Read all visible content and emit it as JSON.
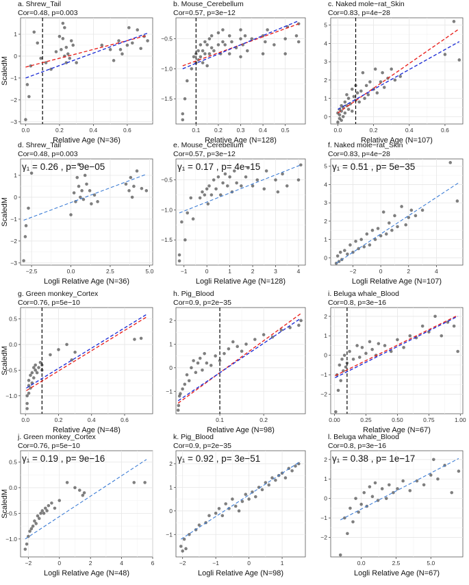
{
  "figure": {
    "ylabel": "ScaledM"
  },
  "chart_data": [
    {
      "type": "scatter",
      "title": "a. Shrew_Tail",
      "subtitle": "Cor=0.48, p=0.003",
      "xlabel": "Relative Age (N=36)",
      "ylabel": "ScaledM",
      "xlim": [
        -0.03,
        0.75
      ],
      "ylim": [
        -3.1,
        1.75
      ],
      "xticks": [
        0.0,
        0.2,
        0.4,
        0.6
      ],
      "yticks": [
        -3,
        -2,
        -1,
        0,
        1
      ],
      "vline": 0.1,
      "red_fit": [
        [
          0,
          -0.5
        ],
        [
          0.72,
          0.95
        ]
      ],
      "blue_fit": [
        [
          0,
          -1.0
        ],
        [
          0.72,
          1.05
        ]
      ],
      "x": [
        0.0,
        0.01,
        0.02,
        0.03,
        0.05,
        0.07,
        0.09,
        0.12,
        0.15,
        0.18,
        0.2,
        0.21,
        0.22,
        0.22,
        0.23,
        0.23,
        0.24,
        0.24,
        0.25,
        0.26,
        0.27,
        0.28,
        0.3,
        0.45,
        0.5,
        0.52,
        0.55,
        0.56,
        0.57,
        0.6,
        0.61,
        0.63,
        0.66,
        0.68,
        0.7,
        0.72
      ],
      "y": [
        -2.9,
        -1.3,
        -1.85,
        -0.45,
        1.1,
        0.6,
        -0.1,
        -0.3,
        -0.6,
        0.2,
        0.9,
        0.3,
        1.5,
        0.8,
        1.3,
        0.0,
        0.4,
        -0.3,
        0.1,
        -0.1,
        0.7,
        0.5,
        -0.3,
        0.5,
        0.3,
        -0.2,
        0.7,
        0.3,
        0.1,
        0.5,
        1.3,
        0.6,
        1.2,
        0.35,
        0.9,
        0.7
      ]
    },
    {
      "type": "scatter",
      "title": "b. Mouse_Cerebellum",
      "subtitle": "Cor=0.57, p=3e−12",
      "xlabel": "Relative Age (N=128)",
      "ylabel": "",
      "xlim": [
        0.01,
        0.59
      ],
      "ylim": [
        -1.92,
        -0.15
      ],
      "xticks": [
        0.1,
        0.2,
        0.3,
        0.4,
        0.5
      ],
      "yticks": [
        -1.5,
        -1.0,
        -0.5
      ],
      "vline": 0.1,
      "red_fit": [
        [
          0.04,
          -0.95
        ],
        [
          0.56,
          -0.25
        ]
      ],
      "blue_fit": [
        [
          0.04,
          -1.0
        ],
        [
          0.56,
          -0.2
        ]
      ],
      "x": [
        0.04,
        0.04,
        0.05,
        0.06,
        0.08,
        0.09,
        0.1,
        0.1,
        0.11,
        0.11,
        0.12,
        0.12,
        0.13,
        0.13,
        0.14,
        0.14,
        0.15,
        0.15,
        0.16,
        0.16,
        0.17,
        0.17,
        0.18,
        0.2,
        0.2,
        0.21,
        0.22,
        0.22,
        0.23,
        0.25,
        0.25,
        0.26,
        0.28,
        0.3,
        0.3,
        0.3,
        0.31,
        0.32,
        0.33,
        0.35,
        0.4,
        0.4,
        0.41,
        0.42,
        0.45,
        0.5,
        0.5,
        0.51,
        0.55,
        0.56,
        0.56
      ],
      "y": [
        -1.85,
        -1.75,
        -1.5,
        -1.2,
        -1.0,
        -0.8,
        -0.9,
        -0.75,
        -0.85,
        -0.7,
        -0.8,
        -0.6,
        -0.9,
        -0.7,
        -0.75,
        -0.55,
        -0.95,
        -0.6,
        -0.5,
        -0.75,
        -0.65,
        -0.45,
        -0.7,
        -0.6,
        -0.4,
        -0.75,
        -0.55,
        -0.35,
        -0.6,
        -0.75,
        -0.45,
        -0.55,
        -0.65,
        -0.8,
        -0.5,
        -0.35,
        -0.6,
        -0.45,
        -0.7,
        -0.5,
        -0.75,
        -0.45,
        -0.55,
        -0.35,
        -0.6,
        -0.75,
        -0.5,
        -0.3,
        -0.45,
        -0.55,
        -0.25
      ]
    },
    {
      "type": "scatter",
      "title": "c. Naked mole−rat_Skin",
      "subtitle": "Cor=0.83, p=4e−28",
      "xlabel": "Relative Age (N=107)",
      "ylabel": "",
      "xlim": [
        -0.04,
        0.7
      ],
      "ylim": [
        -0.4,
        5.4
      ],
      "xticks": [
        0.0,
        0.2,
        0.4,
        0.6
      ],
      "yticks": [
        0,
        1,
        2,
        3,
        4,
        5
      ],
      "vline": 0.1,
      "red_fit": [
        [
          0,
          0.2
        ],
        [
          0.68,
          4.8
        ]
      ],
      "blue_fit": [
        [
          0,
          0.4
        ],
        [
          0.68,
          4.1
        ]
      ],
      "x": [
        0.0,
        0.0,
        0.01,
        0.01,
        0.01,
        0.02,
        0.02,
        0.02,
        0.03,
        0.03,
        0.04,
        0.04,
        0.05,
        0.05,
        0.06,
        0.06,
        0.07,
        0.08,
        0.08,
        0.09,
        0.1,
        0.1,
        0.11,
        0.12,
        0.13,
        0.14,
        0.15,
        0.16,
        0.17,
        0.18,
        0.2,
        0.21,
        0.22,
        0.24,
        0.25,
        0.26,
        0.28,
        0.3,
        0.32,
        0.35,
        0.6,
        0.65,
        0.68
      ],
      "y": [
        -0.3,
        0.2,
        -0.1,
        0.4,
        0.1,
        0.6,
        -0.2,
        0.3,
        0.5,
        0.0,
        0.8,
        0.2,
        0.6,
        1.2,
        0.4,
        1.0,
        0.7,
        1.5,
        0.3,
        1.1,
        0.9,
        1.7,
        1.3,
        0.8,
        1.4,
        2.4,
        1.0,
        1.7,
        1.2,
        1.9,
        1.5,
        2.6,
        1.3,
        1.9,
        2.4,
        1.6,
        2.1,
        2.6,
        2.0,
        2.2,
        3.4,
        5.2,
        3.1
      ]
    },
    {
      "type": "scatter",
      "title": "d. Shrew_Tail",
      "subtitle": "Cor=0.48, p=0.003",
      "xlabel": "Logli Relative Age (N=36)",
      "ylabel": "ScaledM",
      "gamma_label": "γ₁ = 0.26 , p= 9e−05",
      "xlim": [
        -3.2,
        5.2
      ],
      "ylim": [
        -3.1,
        1.75
      ],
      "xticks": [
        -2.5,
        0.0,
        2.5,
        5.0
      ],
      "yticks": [
        -3,
        -2,
        -1,
        0,
        1
      ],
      "blue_fit": [
        [
          -3.0,
          -1.05
        ],
        [
          4.8,
          1.05
        ]
      ],
      "x": [
        -3.0,
        -2.9,
        -2.85,
        -2.7,
        -2.5,
        0.0,
        0.2,
        0.3,
        0.4,
        0.5,
        0.5,
        0.6,
        0.7,
        0.8,
        0.9,
        1.0,
        1.2,
        1.3,
        1.5,
        1.7,
        3.5,
        3.7,
        3.8,
        3.9,
        4.0,
        4.2,
        4.5,
        4.8
      ],
      "y": [
        -2.9,
        -1.8,
        -1.3,
        -0.5,
        1.1,
        -0.8,
        0.2,
        -0.2,
        0.9,
        0.5,
        1.5,
        0.0,
        0.3,
        -0.1,
        1.0,
        0.6,
        0.3,
        -0.3,
        0.1,
        -0.2,
        0.6,
        0.3,
        0.9,
        0.0,
        0.5,
        1.2,
        0.4,
        0.3
      ]
    },
    {
      "type": "scatter",
      "title": "e. Mouse_Cerebellum",
      "subtitle": "Cor=0.57, p=3e−12",
      "xlabel": "Logli Relative Age (N=128)",
      "ylabel": "",
      "gamma_label": "γ₁ = 0.17 , p= 4e−15",
      "xlim": [
        -1.35,
        4.3
      ],
      "ylim": [
        -1.92,
        -0.15
      ],
      "xticks": [
        -1,
        0,
        1,
        2,
        3,
        4
      ],
      "yticks": [
        -1.5,
        -1.0,
        -0.5
      ],
      "blue_fit": [
        [
          -1.2,
          -1.05
        ],
        [
          4.1,
          -0.25
        ]
      ],
      "x": [
        -1.2,
        -1.2,
        -1.1,
        -0.95,
        -0.85,
        -0.7,
        -0.6,
        -0.3,
        -0.2,
        -0.1,
        0.0,
        0.05,
        0.1,
        0.2,
        0.3,
        0.4,
        0.5,
        0.6,
        0.7,
        0.8,
        0.9,
        1.0,
        1.1,
        1.2,
        1.3,
        1.5,
        1.7,
        1.8,
        2.0,
        2.2,
        2.5,
        2.6,
        3.0,
        3.1,
        3.3,
        3.5,
        4.0,
        4.1
      ],
      "y": [
        -1.85,
        -1.75,
        -1.2,
        -1.5,
        -1.05,
        -0.8,
        -1.15,
        -0.8,
        -0.7,
        -0.75,
        -0.65,
        -0.9,
        -0.6,
        -0.75,
        -0.5,
        -0.65,
        -0.45,
        -0.75,
        -0.55,
        -0.4,
        -0.6,
        -0.45,
        -0.7,
        -0.35,
        -0.55,
        -0.6,
        -0.45,
        -0.3,
        -0.6,
        -0.5,
        -0.65,
        -0.35,
        -0.5,
        -0.7,
        -0.4,
        -0.6,
        -0.5,
        -0.25
      ]
    },
    {
      "type": "scatter",
      "title": "f. Naked mole−rat_Skin",
      "subtitle": "Cor=0.83, p=4e−28",
      "xlabel": "Logli Relative Age (N=107)",
      "ylabel": "",
      "gamma_label": "γ₁ = 0.51 , p= 5e−35",
      "xlim": [
        -3.6,
        5.9
      ],
      "ylim": [
        -0.4,
        5.4
      ],
      "xticks": [
        -2,
        0,
        2,
        4
      ],
      "yticks": [
        0,
        1,
        2,
        3,
        4,
        5
      ],
      "blue_fit": [
        [
          -3.2,
          -0.3
        ],
        [
          5.6,
          4.1
        ]
      ],
      "x": [
        -3.2,
        -3.1,
        -3.0,
        -2.9,
        -2.8,
        -2.6,
        -2.4,
        -2.2,
        -2.0,
        -1.8,
        -1.6,
        -1.4,
        -1.2,
        -1.0,
        -0.8,
        -0.6,
        -0.4,
        -0.2,
        0.0,
        0.2,
        0.4,
        0.6,
        0.8,
        1.0,
        1.2,
        1.5,
        1.8,
        2.0,
        2.2,
        2.5,
        3.0,
        5.0,
        5.5
      ],
      "y": [
        -0.3,
        0.1,
        -0.2,
        0.3,
        -0.1,
        0.4,
        0.2,
        0.7,
        0.3,
        0.9,
        0.5,
        1.0,
        0.6,
        1.3,
        0.7,
        1.5,
        1.0,
        1.6,
        1.2,
        2.5,
        1.3,
        1.9,
        1.5,
        2.3,
        1.7,
        2.8,
        1.8,
        2.2,
        2.6,
        2.3,
        2.6,
        5.2,
        3.1
      ]
    },
    {
      "type": "scatter",
      "title": "g. Green monkey_Cortex",
      "subtitle": "Cor=0.76, p=5e−10",
      "xlabel": "Relative Age (N=48)",
      "ylabel": "ScaledM",
      "xlim": [
        -0.03,
        0.77
      ],
      "ylim": [
        -1.35,
        0.72
      ],
      "xticks": [
        0.0,
        0.2,
        0.4,
        0.6
      ],
      "yticks": [
        -1.0,
        -0.5,
        0.0,
        0.5
      ],
      "vline": 0.1,
      "red_fit": [
        [
          0.005,
          -0.9
        ],
        [
          0.74,
          0.55
        ]
      ],
      "blue_fit": [
        [
          0.005,
          -0.85
        ],
        [
          0.74,
          0.6
        ]
      ],
      "x": [
        0.01,
        0.01,
        0.01,
        0.02,
        0.02,
        0.02,
        0.03,
        0.03,
        0.04,
        0.04,
        0.05,
        0.05,
        0.06,
        0.06,
        0.07,
        0.08,
        0.09,
        0.1,
        0.1,
        0.15,
        0.2,
        0.25,
        0.28,
        0.3,
        0.66,
        0.7
      ],
      "y": [
        -1.25,
        -1.15,
        -1.0,
        -0.95,
        -0.8,
        -0.7,
        -0.85,
        -0.6,
        -0.75,
        -0.55,
        -0.65,
        -0.45,
        -0.5,
        -0.4,
        -0.55,
        -0.45,
        -0.35,
        -0.5,
        -0.4,
        -0.2,
        -0.1,
        0.0,
        -0.3,
        -0.15,
        0.1,
        0.12
      ]
    },
    {
      "type": "scatter",
      "title": "h. Pig_Blood",
      "subtitle": "Cor=0.9, p=2e−35",
      "xlabel": "Relative Age (N=98)",
      "ylabel": "",
      "xlim": [
        0.0,
        0.295
      ],
      "ylim": [
        -1.95,
        2.55
      ],
      "xticks": [
        0.1,
        0.2
      ],
      "yticks": [
        -1,
        0,
        1,
        2
      ],
      "vline": 0.1,
      "red_fit": [
        [
          0.005,
          -1.5
        ],
        [
          0.285,
          2.3
        ]
      ],
      "blue_fit": [
        [
          0.005,
          -1.4
        ],
        [
          0.285,
          2.1
        ]
      ],
      "x": [
        0.005,
        0.006,
        0.008,
        0.01,
        0.015,
        0.02,
        0.025,
        0.03,
        0.035,
        0.04,
        0.045,
        0.05,
        0.055,
        0.06,
        0.065,
        0.07,
        0.08,
        0.09,
        0.1,
        0.11,
        0.12,
        0.13,
        0.14,
        0.15,
        0.16,
        0.18,
        0.2,
        0.22,
        0.24,
        0.26,
        0.28,
        0.285
      ],
      "y": [
        -1.8,
        -1.6,
        -1.2,
        -1.1,
        -0.9,
        -0.7,
        -0.3,
        -0.55,
        0.0,
        0.3,
        -0.2,
        0.2,
        0.4,
        -0.1,
        0.6,
        0.2,
        0.1,
        0.5,
        0.3,
        0.6,
        0.8,
        1.1,
        0.9,
        0.7,
        1.0,
        1.2,
        1.4,
        1.3,
        1.6,
        1.7,
        1.8,
        2.0
      ]
    },
    {
      "type": "scatter",
      "title": "i. Beluga whale_Blood",
      "subtitle": "Cor=0.8, p=3e−16",
      "xlabel": "Relative Age (N=67)",
      "ylabel": "",
      "xlim": [
        -0.03,
        1.02
      ],
      "ylim": [
        -3.0,
        2.45
      ],
      "xticks": [
        0.0,
        0.25,
        0.5,
        0.75,
        1.0
      ],
      "yticks": [
        -2,
        -1,
        0,
        1,
        2
      ],
      "vline": 0.1,
      "red_fit": [
        [
          0.005,
          -1.05
        ],
        [
          0.98,
          2.05
        ]
      ],
      "blue_fit": [
        [
          0.005,
          -1.15
        ],
        [
          0.98,
          2.0
        ]
      ],
      "x": [
        0.01,
        0.02,
        0.03,
        0.04,
        0.05,
        0.06,
        0.07,
        0.08,
        0.09,
        0.1,
        0.12,
        0.15,
        0.18,
        0.2,
        0.22,
        0.25,
        0.28,
        0.3,
        0.33,
        0.35,
        0.4,
        0.45,
        0.5,
        0.55,
        0.6,
        0.65,
        0.7,
        0.75,
        0.8,
        0.85,
        0.9,
        0.95,
        0.98
      ],
      "y": [
        -2.9,
        -1.0,
        -1.8,
        -0.5,
        -1.3,
        -0.2,
        -0.8,
        0.0,
        -0.6,
        -0.4,
        0.2,
        -0.2,
        0.5,
        -0.1,
        0.4,
        0.1,
        0.7,
        0.3,
        0.0,
        0.6,
        0.5,
        0.2,
        0.8,
        0.4,
        1.0,
        0.9,
        1.5,
        1.2,
        2.0,
        1.0,
        1.7,
        1.5,
        0.2
      ]
    },
    {
      "type": "scatter",
      "title": "j. Green monkey_Cortex",
      "subtitle": "Cor=0.76, p=5e−10",
      "xlabel": "Logli Relative Age (N=48)",
      "ylabel": "ScaledM",
      "gamma_label": "γ₁ = 0.19 , p= 9e−16",
      "xlim": [
        -2.5,
        6.0
      ],
      "ylim": [
        -1.35,
        0.72
      ],
      "xticks": [
        -2,
        0,
        2,
        4,
        6
      ],
      "yticks": [
        -1.0,
        -0.5,
        0.0,
        0.5
      ],
      "blue_fit": [
        [
          -2.2,
          -1.0
        ],
        [
          5.6,
          0.55
        ]
      ],
      "x": [
        -2.2,
        -2.1,
        -2.0,
        -1.9,
        -1.8,
        -1.7,
        -1.6,
        -1.5,
        -1.4,
        -1.3,
        -1.2,
        -1.1,
        -1.0,
        -0.9,
        -0.8,
        -0.7,
        -0.5,
        -0.3,
        0.0,
        0.5,
        1.0,
        1.3,
        1.5,
        1.6,
        4.8,
        5.5
      ],
      "y": [
        -1.2,
        -1.1,
        -0.95,
        -0.85,
        -0.8,
        -0.75,
        -0.65,
        -0.7,
        -0.55,
        -0.6,
        -0.5,
        -0.45,
        -0.5,
        -0.4,
        -0.45,
        -0.35,
        -0.3,
        -0.4,
        -0.25,
        0.1,
        0.0,
        -0.05,
        -0.15,
        -0.1,
        0.1,
        0.1
      ]
    },
    {
      "type": "scatter",
      "title": "k. Pig_Blood",
      "subtitle": "Cor=0.9, p=2e−35",
      "xlabel": "Logli Relative Age (N=98)",
      "ylabel": "",
      "gamma_label": "γ₁ = 0.92 , p= 3e−51",
      "xlim": [
        -2.2,
        1.7
      ],
      "ylim": [
        -1.95,
        2.55
      ],
      "xticks": [
        -2,
        -1,
        0,
        1
      ],
      "yticks": [
        -1,
        0,
        1,
        2
      ],
      "blue_fit": [
        [
          -2.05,
          -1.2
        ],
        [
          1.55,
          2.1
        ]
      ],
      "x": [
        -2.05,
        -2.0,
        -1.95,
        -1.9,
        -1.8,
        -1.6,
        -1.5,
        -1.3,
        -1.2,
        -1.0,
        -0.9,
        -0.8,
        -0.7,
        -0.6,
        -0.5,
        -0.4,
        -0.3,
        -0.2,
        -0.1,
        0.0,
        0.1,
        0.2,
        0.3,
        0.4,
        0.5,
        0.6,
        0.7,
        0.8,
        0.9,
        1.0,
        1.1,
        1.2,
        1.3,
        1.4,
        1.5
      ],
      "y": [
        -1.5,
        -1.7,
        -1.2,
        -1.6,
        -1.0,
        -0.8,
        -0.6,
        -0.5,
        -0.2,
        -0.1,
        0.1,
        -0.2,
        0.3,
        0.1,
        0.5,
        0.2,
        0.0,
        0.4,
        0.7,
        0.5,
        0.8,
        0.6,
        1.0,
        0.9,
        1.2,
        1.1,
        1.4,
        1.3,
        1.5,
        1.6,
        1.4,
        1.8,
        1.7,
        1.9,
        2.0
      ]
    },
    {
      "type": "scatter",
      "title": "l. Beluga whale_Blood",
      "subtitle": "Cor=0.8, p=3e−16",
      "xlabel": "Logli Relative Age (N=67)",
      "ylabel": "",
      "gamma_label": "γ₁ = 0.38 , p= 1e−17",
      "xlim": [
        -2.2,
        7.3
      ],
      "ylim": [
        -3.0,
        2.45
      ],
      "xticks": [
        0.0,
        2.5,
        5.0
      ],
      "yticks": [
        -2,
        -1,
        0,
        1,
        2
      ],
      "blue_fit": [
        [
          -1.5,
          -1.1
        ],
        [
          7.0,
          2.05
        ]
      ],
      "x": [
        -1.5,
        -1.2,
        -1.0,
        -0.8,
        -0.6,
        -0.4,
        -0.2,
        0.0,
        0.2,
        0.4,
        0.6,
        0.8,
        1.0,
        1.2,
        1.5,
        1.8,
        2.0,
        2.3,
        2.6,
        3.0,
        3.5,
        4.0,
        4.5,
        5.0,
        5.2,
        5.5,
        6.0,
        6.5,
        7.0
      ],
      "y": [
        -2.9,
        -1.0,
        -1.8,
        -0.5,
        -1.2,
        0.0,
        -0.7,
        -0.3,
        0.3,
        -0.4,
        0.6,
        0.1,
        0.8,
        -0.1,
        0.5,
        0.0,
        0.7,
        0.3,
        0.5,
        0.9,
        0.4,
        0.9,
        0.7,
        1.2,
        2.0,
        1.0,
        1.7,
        0.3,
        1.4
      ]
    }
  ]
}
